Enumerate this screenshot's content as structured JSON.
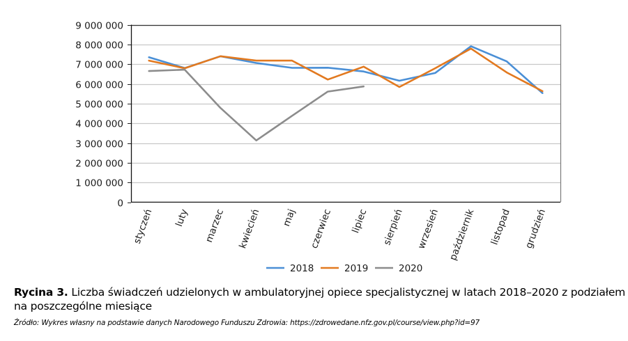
{
  "chart_data": {
    "type": "line",
    "title": "",
    "xlabel": "",
    "ylabel": "",
    "categories": [
      "styczeń",
      "luty",
      "marzec",
      "kwiecień",
      "maj",
      "czerwiec",
      "lipiec",
      "sierpień",
      "wrzesień",
      "październik",
      "listopad",
      "grudzień"
    ],
    "ylim": [
      0,
      9000000
    ],
    "yticks": [
      0,
      1000000,
      2000000,
      3000000,
      4000000,
      5000000,
      6000000,
      7000000,
      8000000,
      9000000
    ],
    "ytick_labels": [
      "0",
      "1 000 000",
      "2 000 000",
      "3 000 000",
      "4 000 000",
      "5 000 000",
      "6 000 000",
      "7 000 000",
      "8 000 000",
      "9 000 000"
    ],
    "grid": true,
    "legend_position": "bottom",
    "series": [
      {
        "name": "2018",
        "color": "#4A8FD6",
        "values": [
          7350000,
          6800000,
          7400000,
          7060000,
          6810000,
          6820000,
          6630000,
          6160000,
          6550000,
          7910000,
          7140000,
          5530000
        ]
      },
      {
        "name": "2019",
        "color": "#E2791F",
        "values": [
          7180000,
          6790000,
          7400000,
          7180000,
          7180000,
          6220000,
          6870000,
          5840000,
          6790000,
          7790000,
          6580000,
          5630000
        ]
      },
      {
        "name": "2020",
        "color": "#8C8C8C",
        "values": [
          6650000,
          6720000,
          4780000,
          3130000,
          4380000,
          5610000,
          5870000,
          null,
          null,
          null,
          null,
          null
        ]
      }
    ]
  },
  "caption": {
    "label": "Rycina 3.",
    "text": " Liczba świadczeń udzielonych w ambulatoryjnej opiece specjalistycznej w latach 2018–2020 z podziałem na poszczególne miesiące"
  },
  "source": "Źródło: Wykres własny na podstawie danych Narodowego Funduszu Zdrowia: https://zdrowedane.nfz.gov.pl/course/view.php?id=97"
}
